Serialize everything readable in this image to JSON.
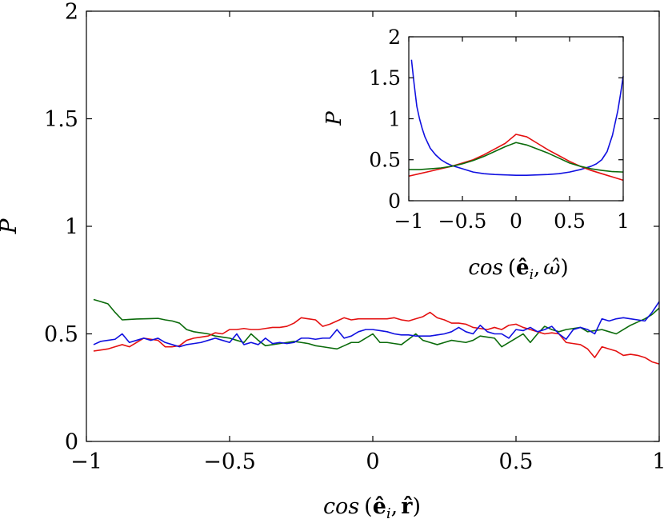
{
  "chart_data": [
    {
      "type": "line",
      "xlim": [
        -1,
        1
      ],
      "ylim": [
        0,
        2
      ],
      "ylabel": "P",
      "xlabel_parts": {
        "func": "cos",
        "open": "(",
        "e": "ê",
        "sub": "i",
        "comma": ",",
        "r": "r̂",
        "close": ")"
      },
      "xticks": [
        -1,
        -0.5,
        0,
        0.5,
        1
      ],
      "xtick_labels": [
        "−1",
        "−0.5",
        "0",
        "0.5",
        "1"
      ],
      "yticks": [
        0,
        0.5,
        1,
        1.5,
        2
      ],
      "ytick_labels": [
        "0",
        "0.5",
        "1",
        "1.5",
        "2"
      ],
      "series": [
        {
          "name": "green",
          "color": "#0b6b0b",
          "x": [
            -0.975,
            -0.95,
            -0.925,
            -0.9,
            -0.875,
            -0.85,
            -0.825,
            -0.8,
            -0.775,
            -0.75,
            -0.725,
            -0.7,
            -0.675,
            -0.65,
            -0.625,
            -0.6,
            -0.575,
            -0.55,
            -0.525,
            -0.5,
            -0.475,
            -0.45,
            -0.425,
            -0.4,
            -0.375,
            -0.35,
            -0.325,
            -0.3,
            -0.275,
            -0.25,
            -0.225,
            -0.2,
            -0.175,
            -0.15,
            -0.125,
            -0.1,
            -0.075,
            -0.05,
            -0.025,
            0,
            0.025,
            0.05,
            0.075,
            0.1,
            0.125,
            0.15,
            0.175,
            0.2,
            0.225,
            0.25,
            0.275,
            0.3,
            0.325,
            0.35,
            0.375,
            0.4,
            0.425,
            0.45,
            0.475,
            0.5,
            0.525,
            0.55,
            0.575,
            0.6,
            0.625,
            0.65,
            0.675,
            0.7,
            0.725,
            0.75,
            0.775,
            0.8,
            0.825,
            0.85,
            0.875,
            0.9,
            0.925,
            0.95,
            0.975,
            1
          ],
          "values": [
            0.66,
            0.65,
            0.64,
            0.6,
            0.565,
            0.567,
            0.569,
            0.57,
            0.571,
            0.572,
            0.565,
            0.56,
            0.55,
            0.52,
            0.51,
            0.505,
            0.5,
            0.49,
            0.485,
            0.48,
            0.47,
            0.46,
            0.5,
            0.47,
            0.445,
            0.45,
            0.455,
            0.46,
            0.465,
            0.46,
            0.455,
            0.445,
            0.44,
            0.435,
            0.43,
            0.445,
            0.46,
            0.46,
            0.48,
            0.5,
            0.46,
            0.46,
            0.455,
            0.45,
            0.475,
            0.5,
            0.47,
            0.46,
            0.45,
            0.46,
            0.47,
            0.465,
            0.46,
            0.47,
            0.49,
            0.485,
            0.48,
            0.44,
            0.46,
            0.48,
            0.5,
            0.46,
            0.5,
            0.535,
            0.52,
            0.51,
            0.52,
            0.525,
            0.53,
            0.51,
            0.515,
            0.52,
            0.51,
            0.5,
            0.52,
            0.54,
            0.555,
            0.57,
            0.59,
            0.62
          ]
        },
        {
          "name": "red",
          "color": "#e41010",
          "x": [
            -0.975,
            -0.95,
            -0.925,
            -0.9,
            -0.875,
            -0.85,
            -0.825,
            -0.8,
            -0.775,
            -0.75,
            -0.725,
            -0.7,
            -0.675,
            -0.65,
            -0.625,
            -0.6,
            -0.575,
            -0.55,
            -0.525,
            -0.5,
            -0.475,
            -0.45,
            -0.425,
            -0.4,
            -0.375,
            -0.35,
            -0.325,
            -0.3,
            -0.275,
            -0.25,
            -0.225,
            -0.2,
            -0.175,
            -0.15,
            -0.125,
            -0.1,
            -0.075,
            -0.05,
            -0.025,
            0,
            0.025,
            0.05,
            0.075,
            0.1,
            0.125,
            0.15,
            0.175,
            0.2,
            0.225,
            0.25,
            0.275,
            0.3,
            0.325,
            0.35,
            0.375,
            0.4,
            0.425,
            0.45,
            0.475,
            0.5,
            0.525,
            0.55,
            0.575,
            0.6,
            0.625,
            0.65,
            0.675,
            0.7,
            0.725,
            0.75,
            0.775,
            0.8,
            0.825,
            0.85,
            0.875,
            0.9,
            0.925,
            0.95,
            0.975,
            1
          ],
          "values": [
            0.42,
            0.425,
            0.43,
            0.44,
            0.45,
            0.44,
            0.46,
            0.48,
            0.475,
            0.47,
            0.44,
            0.44,
            0.445,
            0.47,
            0.48,
            0.485,
            0.49,
            0.505,
            0.5,
            0.52,
            0.52,
            0.525,
            0.52,
            0.52,
            0.525,
            0.53,
            0.53,
            0.535,
            0.55,
            0.575,
            0.57,
            0.565,
            0.535,
            0.545,
            0.56,
            0.575,
            0.565,
            0.57,
            0.57,
            0.57,
            0.57,
            0.57,
            0.575,
            0.565,
            0.56,
            0.57,
            0.58,
            0.6,
            0.575,
            0.565,
            0.55,
            0.55,
            0.545,
            0.53,
            0.525,
            0.52,
            0.53,
            0.52,
            0.54,
            0.545,
            0.53,
            0.52,
            0.51,
            0.5,
            0.505,
            0.5,
            0.46,
            0.455,
            0.45,
            0.43,
            0.39,
            0.44,
            0.43,
            0.42,
            0.4,
            0.405,
            0.4,
            0.39,
            0.37,
            0.36
          ]
        },
        {
          "name": "blue",
          "color": "#1010e0",
          "x": [
            -0.975,
            -0.95,
            -0.925,
            -0.9,
            -0.875,
            -0.85,
            -0.825,
            -0.8,
            -0.775,
            -0.75,
            -0.725,
            -0.7,
            -0.675,
            -0.65,
            -0.625,
            -0.6,
            -0.575,
            -0.55,
            -0.525,
            -0.5,
            -0.475,
            -0.45,
            -0.425,
            -0.4,
            -0.375,
            -0.35,
            -0.325,
            -0.3,
            -0.275,
            -0.25,
            -0.225,
            -0.2,
            -0.175,
            -0.15,
            -0.125,
            -0.1,
            -0.075,
            -0.05,
            -0.025,
            0,
            0.025,
            0.05,
            0.075,
            0.1,
            0.125,
            0.15,
            0.175,
            0.2,
            0.225,
            0.25,
            0.275,
            0.3,
            0.325,
            0.35,
            0.375,
            0.4,
            0.425,
            0.45,
            0.475,
            0.5,
            0.525,
            0.55,
            0.575,
            0.6,
            0.625,
            0.65,
            0.675,
            0.7,
            0.725,
            0.75,
            0.775,
            0.8,
            0.825,
            0.85,
            0.875,
            0.9,
            0.925,
            0.95,
            0.975,
            1
          ],
          "values": [
            0.45,
            0.465,
            0.47,
            0.475,
            0.5,
            0.46,
            0.47,
            0.48,
            0.47,
            0.48,
            0.46,
            0.45,
            0.44,
            0.45,
            0.455,
            0.46,
            0.47,
            0.48,
            0.47,
            0.46,
            0.5,
            0.45,
            0.46,
            0.45,
            0.48,
            0.455,
            0.46,
            0.455,
            0.46,
            0.48,
            0.48,
            0.475,
            0.48,
            0.48,
            0.52,
            0.48,
            0.49,
            0.51,
            0.52,
            0.52,
            0.515,
            0.51,
            0.5,
            0.495,
            0.495,
            0.49,
            0.49,
            0.49,
            0.495,
            0.5,
            0.51,
            0.53,
            0.51,
            0.5,
            0.54,
            0.51,
            0.5,
            0.5,
            0.48,
            0.52,
            0.515,
            0.53,
            0.51,
            0.52,
            0.535,
            0.5,
            0.475,
            0.52,
            0.53,
            0.52,
            0.5,
            0.57,
            0.56,
            0.57,
            0.575,
            0.57,
            0.565,
            0.56,
            0.6,
            0.65
          ]
        }
      ]
    },
    {
      "type": "line",
      "inset": true,
      "xlim": [
        -1,
        1
      ],
      "ylim": [
        0,
        2
      ],
      "ylabel": "P",
      "xlabel_parts": {
        "func": "cos",
        "open": "(",
        "e": "ê",
        "sub": "i",
        "comma": ",",
        "w": "ω̂",
        "close": ")"
      },
      "xticks": [
        -1,
        -0.5,
        0,
        0.5,
        1
      ],
      "xtick_labels": [
        "−1",
        "−0.5",
        "0",
        "0.5",
        "1"
      ],
      "yticks": [
        0,
        0.5,
        1,
        1.5,
        2
      ],
      "ytick_labels": [
        "0",
        "0.5",
        "1",
        "1.5",
        "2"
      ],
      "series": [
        {
          "name": "blue",
          "color": "#1010e0",
          "x": [
            -0.975,
            -0.95,
            -0.925,
            -0.9,
            -0.875,
            -0.85,
            -0.8,
            -0.75,
            -0.7,
            -0.65,
            -0.6,
            -0.5,
            -0.4,
            -0.3,
            -0.2,
            -0.1,
            0,
            0.1,
            0.2,
            0.3,
            0.4,
            0.5,
            0.6,
            0.65,
            0.7,
            0.75,
            0.8,
            0.85,
            0.9,
            0.925,
            0.95,
            0.975,
            1
          ],
          "values": [
            1.72,
            1.42,
            1.15,
            1.0,
            0.88,
            0.78,
            0.64,
            0.56,
            0.5,
            0.46,
            0.43,
            0.39,
            0.35,
            0.33,
            0.32,
            0.315,
            0.31,
            0.31,
            0.315,
            0.32,
            0.33,
            0.35,
            0.38,
            0.4,
            0.42,
            0.45,
            0.5,
            0.6,
            0.8,
            0.95,
            1.1,
            1.3,
            1.52
          ]
        },
        {
          "name": "red",
          "color": "#e41010",
          "x": [
            -1,
            -0.9,
            -0.8,
            -0.7,
            -0.6,
            -0.5,
            -0.4,
            -0.3,
            -0.2,
            -0.1,
            0,
            0.1,
            0.2,
            0.3,
            0.4,
            0.5,
            0.6,
            0.7,
            0.8,
            0.9,
            1
          ],
          "values": [
            0.3,
            0.33,
            0.36,
            0.39,
            0.42,
            0.46,
            0.5,
            0.56,
            0.63,
            0.7,
            0.81,
            0.78,
            0.7,
            0.62,
            0.55,
            0.48,
            0.42,
            0.37,
            0.33,
            0.29,
            0.25
          ]
        },
        {
          "name": "green",
          "color": "#0b6b0b",
          "x": [
            -1,
            -0.9,
            -0.8,
            -0.7,
            -0.6,
            -0.5,
            -0.4,
            -0.3,
            -0.2,
            -0.1,
            0,
            0.1,
            0.2,
            0.3,
            0.4,
            0.5,
            0.6,
            0.7,
            0.8,
            0.9,
            1
          ],
          "values": [
            0.38,
            0.38,
            0.39,
            0.4,
            0.42,
            0.45,
            0.49,
            0.54,
            0.6,
            0.66,
            0.71,
            0.68,
            0.63,
            0.58,
            0.52,
            0.46,
            0.42,
            0.39,
            0.37,
            0.355,
            0.35
          ]
        }
      ]
    }
  ]
}
